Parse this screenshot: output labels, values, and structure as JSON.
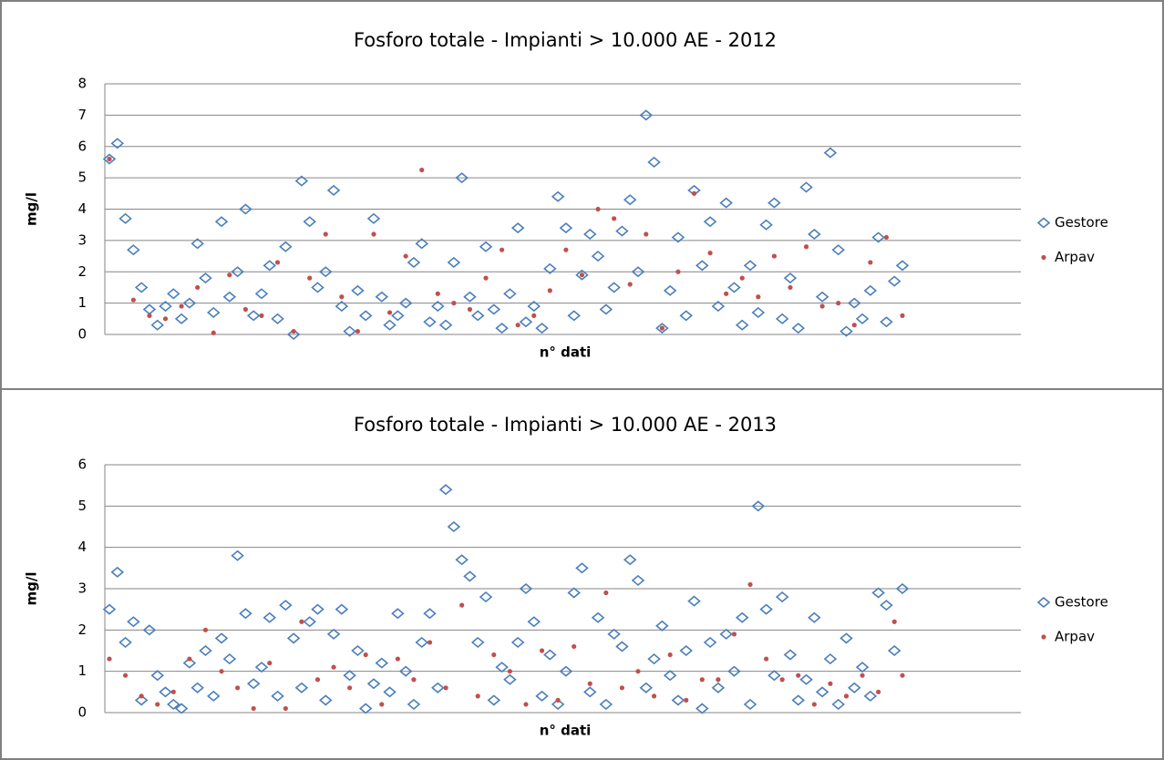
{
  "chart_data": [
    {
      "type": "scatter",
      "title": "Fosforo totale - Impianti > 10.000 AE - 2012",
      "xlabel": "n° dati",
      "ylabel": "mg/l",
      "ylim": [
        0,
        8
      ],
      "yticks": [
        0,
        1,
        2,
        3,
        4,
        5,
        6,
        7,
        8
      ],
      "grid": true,
      "legend": "right",
      "series": [
        {
          "name": "Gestore",
          "color": "#4a7ebb",
          "values": [
            5.6,
            6.1,
            3.7,
            2.7,
            1.5,
            0.8,
            0.3,
            0.9,
            1.3,
            0.5,
            1.0,
            2.9,
            1.8,
            0.7,
            3.6,
            1.2,
            2.0,
            4.0,
            0.6,
            1.3,
            2.2,
            0.5,
            2.8,
            0.0,
            4.9,
            3.6,
            1.5,
            2.0,
            4.6,
            0.9,
            0.1,
            1.4,
            0.6,
            3.7,
            1.2,
            0.3,
            0.6,
            1.0,
            2.3,
            2.9,
            0.4,
            0.9,
            0.3,
            2.3,
            5.0,
            1.2,
            0.6,
            2.8,
            0.8,
            0.2,
            1.3,
            3.4,
            0.4,
            0.9,
            0.2,
            2.1,
            4.4,
            3.4,
            0.6,
            1.9,
            3.2,
            2.5,
            0.8,
            1.5,
            3.3,
            4.3,
            2.0,
            7.0,
            5.5,
            0.2,
            1.4,
            3.1,
            0.6,
            4.6,
            2.2,
            3.6,
            0.9,
            4.2,
            1.5,
            0.3,
            2.2,
            0.7,
            3.5,
            4.2,
            0.5,
            1.8,
            0.2,
            4.7,
            3.2,
            1.2,
            5.8,
            2.7,
            0.1,
            1.0,
            0.5,
            1.4,
            3.1,
            0.4,
            1.7,
            2.2
          ]
        },
        {
          "name": "Arpav",
          "color": "#c0504d",
          "values": [
            5.6,
            null,
            null,
            1.1,
            null,
            0.6,
            null,
            0.5,
            null,
            0.9,
            null,
            1.5,
            null,
            0.05,
            null,
            1.9,
            null,
            0.8,
            null,
            0.6,
            null,
            2.3,
            null,
            0.1,
            null,
            1.8,
            null,
            3.2,
            null,
            1.2,
            null,
            0.1,
            null,
            3.2,
            null,
            0.7,
            null,
            2.5,
            null,
            5.25,
            null,
            1.3,
            null,
            1.0,
            null,
            0.8,
            null,
            1.8,
            null,
            2.7,
            null,
            0.3,
            null,
            0.6,
            null,
            1.4,
            null,
            2.7,
            null,
            1.9,
            null,
            4.0,
            null,
            3.7,
            null,
            1.6,
            null,
            3.2,
            null,
            0.2,
            null,
            2.0,
            null,
            4.5,
            null,
            2.6,
            null,
            1.3,
            null,
            1.8,
            null,
            1.2,
            null,
            2.5,
            null,
            1.5,
            null,
            2.8,
            null,
            0.9,
            null,
            1.0,
            null,
            0.3,
            null,
            2.3,
            null,
            3.1,
            null,
            0.6
          ]
        }
      ]
    },
    {
      "type": "scatter",
      "title": "Fosforo totale - Impianti > 10.000 AE - 2013",
      "xlabel": "n° dati",
      "ylabel": "mg/l",
      "ylim": [
        0,
        6
      ],
      "yticks": [
        0,
        1,
        2,
        3,
        4,
        5,
        6
      ],
      "grid": true,
      "legend": "right",
      "series": [
        {
          "name": "Gestore",
          "color": "#4a7ebb",
          "values": [
            2.5,
            3.4,
            1.7,
            2.2,
            0.3,
            2.0,
            0.9,
            0.5,
            0.2,
            0.1,
            1.2,
            0.6,
            1.5,
            0.4,
            1.8,
            1.3,
            3.8,
            2.4,
            0.7,
            1.1,
            2.3,
            0.4,
            2.6,
            1.8,
            0.6,
            2.2,
            2.5,
            0.3,
            1.9,
            2.5,
            0.9,
            1.5,
            0.1,
            0.7,
            1.2,
            0.5,
            2.4,
            1.0,
            0.2,
            1.7,
            2.4,
            0.6,
            5.4,
            4.5,
            3.7,
            3.3,
            1.7,
            2.8,
            0.3,
            1.1,
            0.8,
            1.7,
            3.0,
            2.2,
            0.4,
            1.4,
            0.2,
            1.0,
            2.9,
            3.5,
            0.5,
            2.3,
            0.2,
            1.9,
            1.6,
            3.7,
            3.2,
            0.6,
            1.3,
            2.1,
            0.9,
            0.3,
            1.5,
            2.7,
            0.1,
            1.7,
            0.6,
            1.9,
            1.0,
            2.3,
            0.2,
            5.0,
            2.5,
            0.9,
            2.8,
            1.4,
            0.3,
            0.8,
            2.3,
            0.5,
            1.3,
            0.2,
            1.8,
            0.6,
            1.1,
            0.4,
            2.9,
            2.6,
            1.5,
            3.0
          ]
        },
        {
          "name": "Arpav",
          "color": "#c0504d",
          "values": [
            1.3,
            null,
            0.9,
            null,
            0.4,
            null,
            0.2,
            null,
            0.5,
            null,
            1.3,
            null,
            2.0,
            null,
            1.0,
            null,
            0.6,
            null,
            0.1,
            null,
            1.2,
            null,
            0.1,
            null,
            2.2,
            null,
            0.8,
            null,
            1.1,
            null,
            0.6,
            null,
            1.4,
            null,
            0.2,
            null,
            1.3,
            null,
            0.8,
            null,
            1.7,
            null,
            0.6,
            null,
            2.6,
            null,
            0.4,
            null,
            1.4,
            null,
            1.0,
            null,
            0.2,
            null,
            1.5,
            null,
            0.3,
            null,
            1.6,
            null,
            0.7,
            null,
            2.9,
            null,
            0.6,
            null,
            1.0,
            null,
            0.4,
            null,
            1.4,
            null,
            0.3,
            null,
            0.8,
            null,
            0.8,
            null,
            1.9,
            null,
            3.1,
            null,
            1.3,
            null,
            0.8,
            null,
            0.9,
            null,
            0.2,
            null,
            0.7,
            null,
            0.4,
            null,
            0.9,
            null,
            0.5,
            null,
            2.2,
            0.9
          ]
        }
      ]
    }
  ]
}
